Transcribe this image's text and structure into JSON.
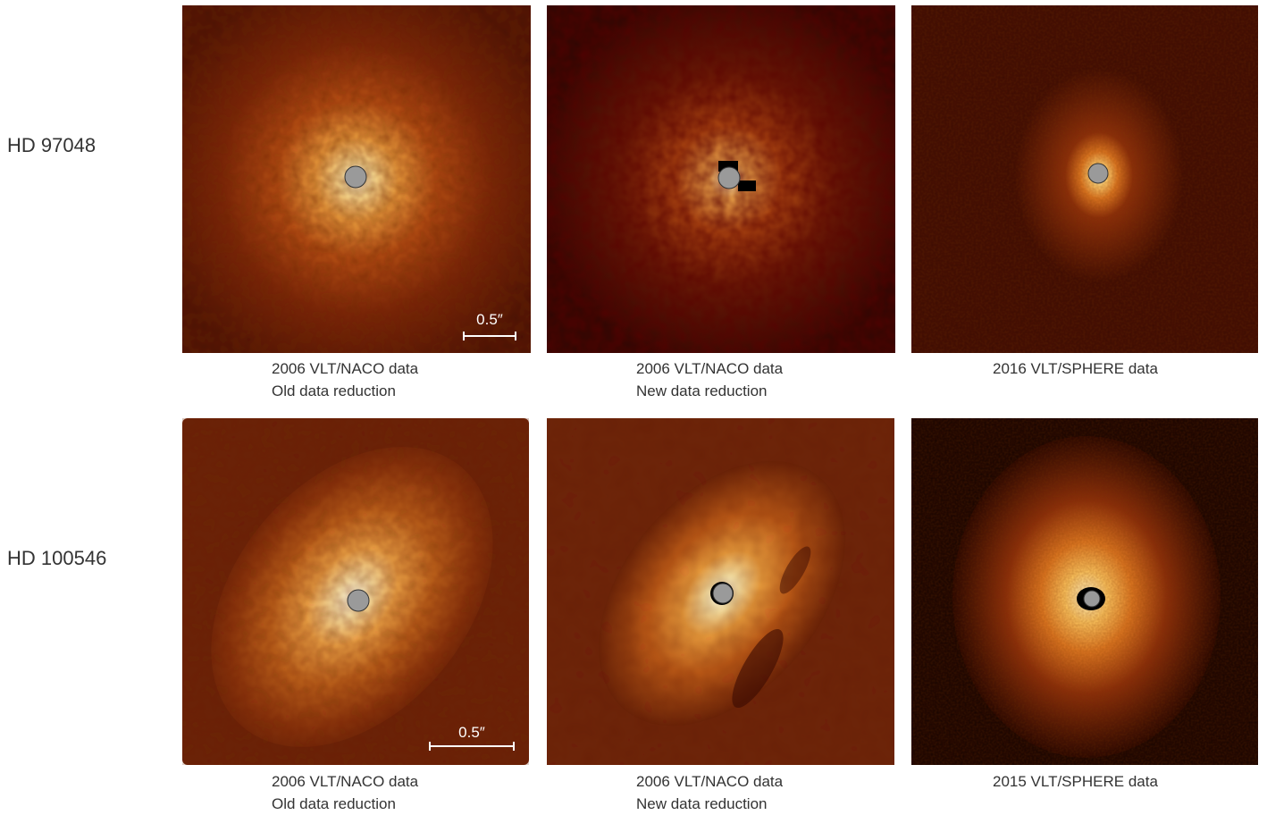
{
  "rows": [
    {
      "label": "HD 97048",
      "panels": [
        {
          "caption_line1": "2006 VLT/NACO data",
          "caption_line2": "Old data reduction",
          "scale_label": "0.5″"
        },
        {
          "caption_line1": "2006 VLT/NACO data",
          "caption_line2": "New data reduction"
        },
        {
          "caption_line1": "2016 VLT/SPHERE data",
          "caption_line2": ""
        }
      ]
    },
    {
      "label": "HD 100546",
      "panels": [
        {
          "caption_line1": "2006 VLT/NACO data",
          "caption_line2": "Old data reduction",
          "scale_label": "0.5″"
        },
        {
          "caption_line1": "2006 VLT/NACO data",
          "caption_line2": "New data reduction"
        },
        {
          "caption_line1": "2015 VLT/SPHERE data",
          "caption_line2": ""
        }
      ]
    }
  ],
  "colors": {
    "background": "#ffffff",
    "image_dark": "#3a0a02",
    "image_mid": "#a83a0c",
    "image_bright": "#ffd890",
    "image_core": "#fffbe6",
    "mask_fill": "#9a9a9a",
    "scale_bar": "#ffffff"
  },
  "icons": {
    "coronagraph_mask": "grey-disc-marker"
  }
}
